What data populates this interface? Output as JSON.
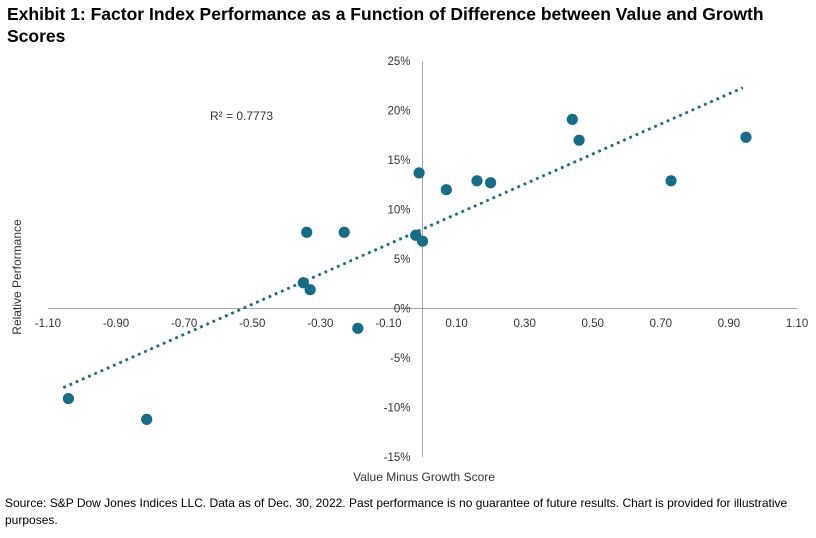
{
  "title": "Exhibit 1: Factor Index Performance as a Function of Difference between Value and Growth Scores",
  "source": "Source: S&P Dow Jones Indices LLC. Data as of Dec. 30, 2022. Past performance is no guarantee of future results. Chart is provided for illustrative purposes.",
  "chart_data": {
    "type": "scatter",
    "title": "Exhibit 1: Factor Index Performance as a Function of Difference between Value and Growth Scores",
    "xlabel": "Value Minus Growth Score",
    "ylabel": "Relative Performance",
    "annotation": "R² = 0.7773",
    "r_squared": 0.7773,
    "xlim": [
      -1.1,
      1.1
    ],
    "ylim": [
      -15,
      25
    ],
    "grid": false,
    "legend": false,
    "point_color": "#176c87",
    "axis_color": "#a6a6a6",
    "x_ticks": [
      {
        "value": -1.1,
        "label": "-1.10"
      },
      {
        "value": -0.9,
        "label": "-0.90"
      },
      {
        "value": -0.7,
        "label": "-0.70"
      },
      {
        "value": -0.5,
        "label": "-0.50"
      },
      {
        "value": -0.3,
        "label": "-0.30"
      },
      {
        "value": -0.1,
        "label": "-0.10"
      },
      {
        "value": 0.1,
        "label": "0.10"
      },
      {
        "value": 0.3,
        "label": "0.30"
      },
      {
        "value": 0.5,
        "label": "0.50"
      },
      {
        "value": 0.7,
        "label": "0.70"
      },
      {
        "value": 0.9,
        "label": "0.90"
      },
      {
        "value": 1.1,
        "label": "1.10"
      }
    ],
    "y_ticks": [
      {
        "value": 25,
        "label": "25%"
      },
      {
        "value": 20,
        "label": "20%"
      },
      {
        "value": 15,
        "label": "15%"
      },
      {
        "value": 10,
        "label": "10%"
      },
      {
        "value": 5,
        "label": "5%"
      },
      {
        "value": 0,
        "label": "0%"
      },
      {
        "value": -5,
        "label": "-5%"
      },
      {
        "value": -10,
        "label": "-10%"
      },
      {
        "value": -15,
        "label": "-15%"
      }
    ],
    "points": [
      [
        -1.04,
        -9.1
      ],
      [
        -0.81,
        -11.2
      ],
      [
        -0.34,
        7.7
      ],
      [
        -0.23,
        7.7
      ],
      [
        -0.35,
        2.6
      ],
      [
        -0.33,
        1.9
      ],
      [
        -0.19,
        -2.0
      ],
      [
        -0.01,
        13.7
      ],
      [
        -0.02,
        7.4
      ],
      [
        0.0,
        6.8
      ],
      [
        0.07,
        12.0
      ],
      [
        0.16,
        12.9
      ],
      [
        0.2,
        12.7
      ],
      [
        0.44,
        19.1
      ],
      [
        0.46,
        17.0
      ],
      [
        0.73,
        12.9
      ],
      [
        0.95,
        17.3
      ]
    ],
    "trendline": {
      "x1": -1.055,
      "y1": -8.0,
      "x2": 0.941,
      "y2": 22.3,
      "style": "dotted"
    }
  }
}
